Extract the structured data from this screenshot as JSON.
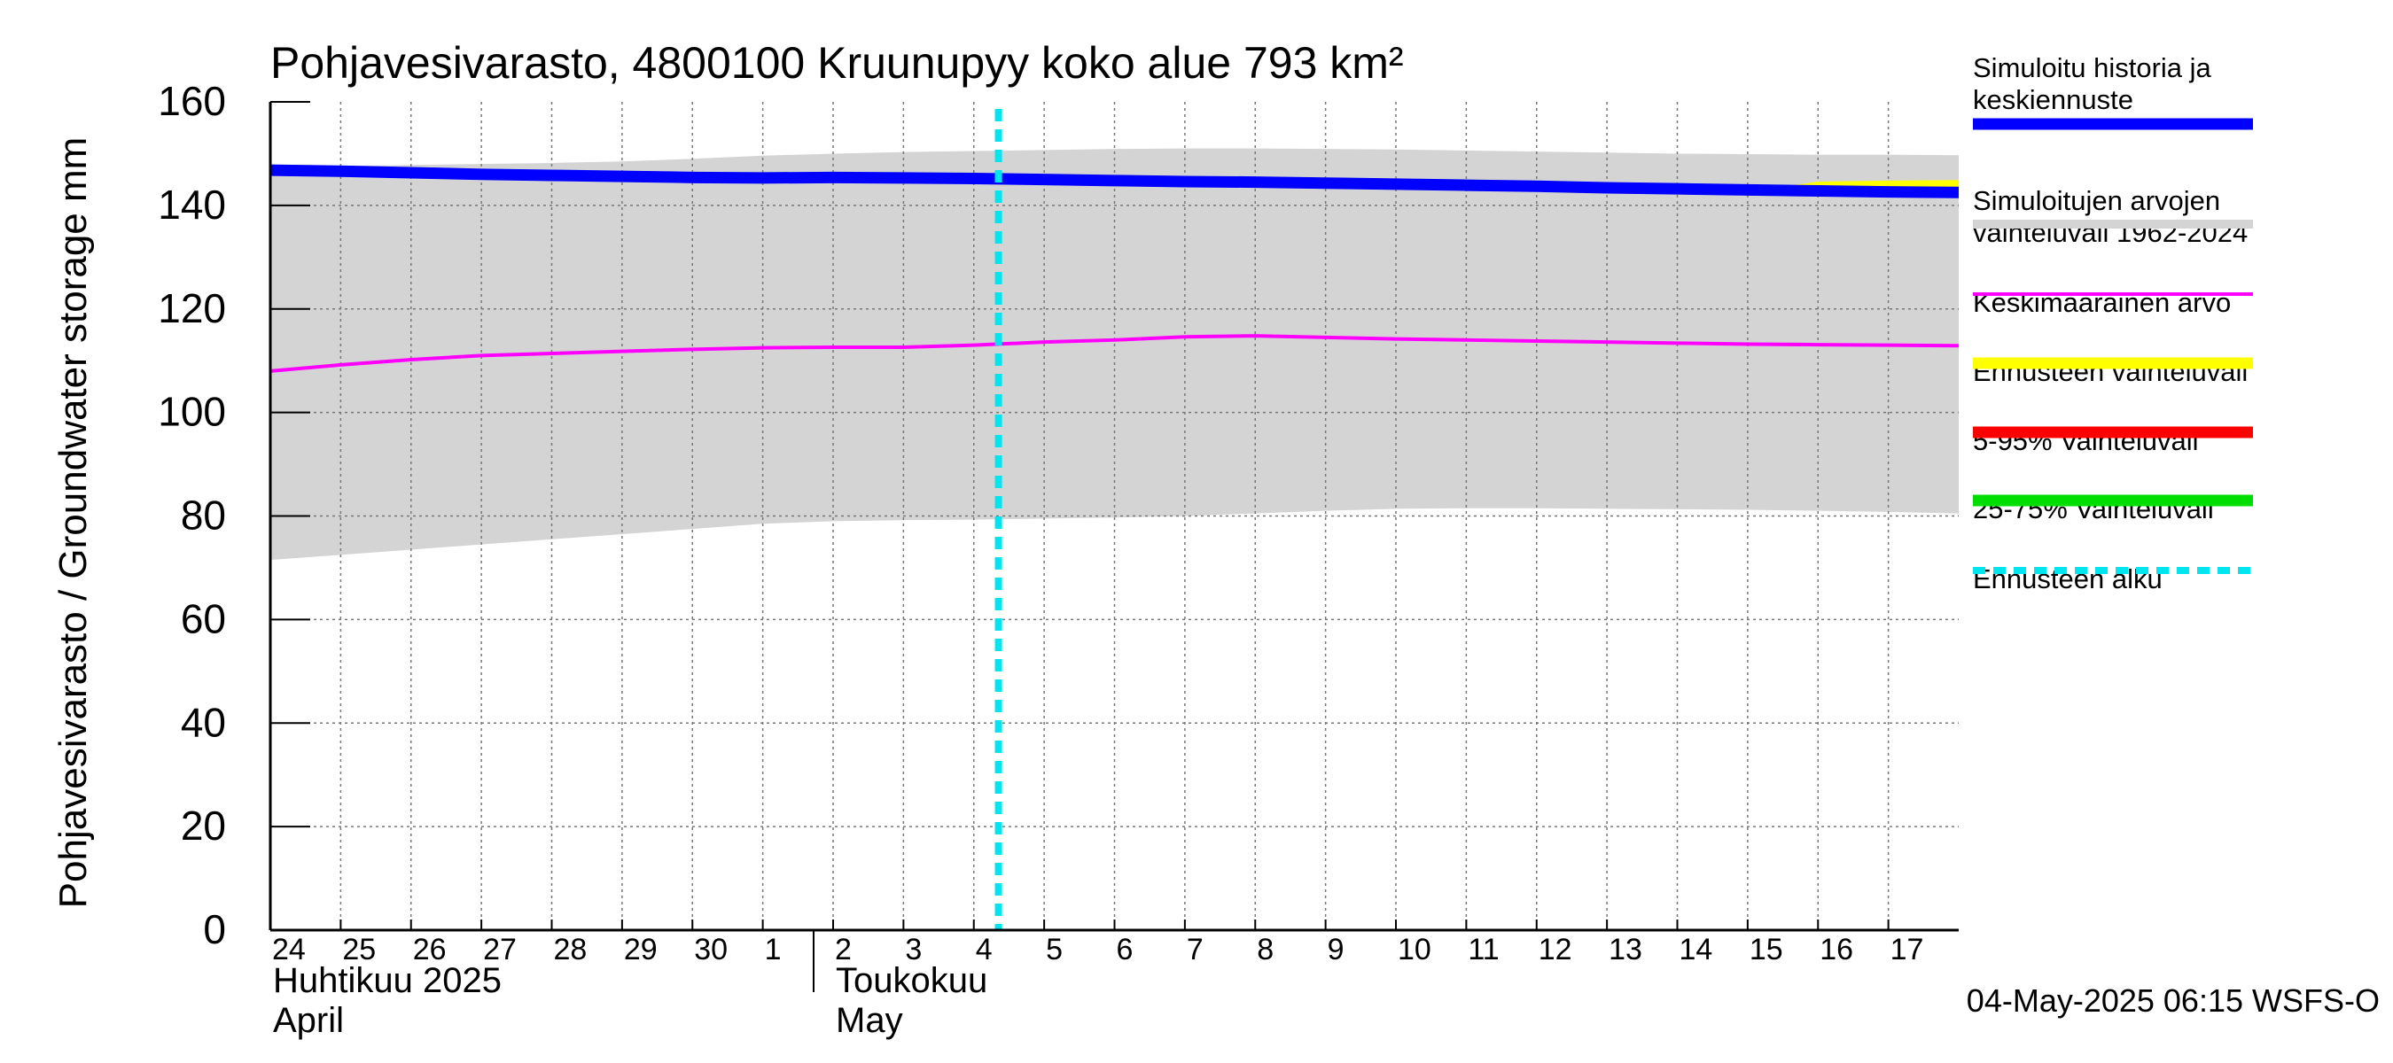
{
  "chart_data": {
    "type": "line",
    "title": "Pohjavesivarasto, 4800100 Kruunupyy koko alue 793 km²",
    "ylabel": "Pohjavesivarasto / Groundwater storage   mm",
    "ylim": [
      0,
      160
    ],
    "yticks": [
      0,
      20,
      40,
      60,
      80,
      100,
      120,
      140,
      160
    ],
    "xlim_days": [
      0,
      24
    ],
    "x_tick_labels": [
      "24",
      "25",
      "26",
      "27",
      "28",
      "29",
      "30",
      "1",
      "2",
      "3",
      "4",
      "5",
      "6",
      "7",
      "8",
      "9",
      "10",
      "11",
      "12",
      "13",
      "14",
      "15",
      "16",
      "17"
    ],
    "month_labels": [
      {
        "fi": "Huhtikuu  2025",
        "en": "April",
        "start_day": 0
      },
      {
        "fi": "Toukokuu",
        "en": "May",
        "start_day": 8
      }
    ],
    "forecast_start_day": 10.35,
    "x_days": [
      0,
      1,
      2,
      3,
      4,
      5,
      6,
      7,
      8,
      9,
      10,
      11,
      12,
      13,
      14,
      15,
      16,
      17,
      18,
      19,
      20,
      21,
      22,
      23,
      24
    ],
    "series": [
      {
        "name": "Simuloitu historia ja keskiennuste",
        "color": "#0000ff",
        "values": [
          146.8,
          146.6,
          146.3,
          146.0,
          145.8,
          145.6,
          145.4,
          145.3,
          145.4,
          145.3,
          145.2,
          145.0,
          144.8,
          144.6,
          144.5,
          144.3,
          144.1,
          143.9,
          143.7,
          143.4,
          143.2,
          143.0,
          142.8,
          142.6,
          142.5
        ]
      },
      {
        "name": "Keskimääräinen arvo",
        "color": "#ff00ff",
        "values": [
          108.0,
          109.2,
          110.2,
          111.0,
          111.4,
          111.8,
          112.2,
          112.5,
          112.6,
          112.6,
          113.0,
          113.6,
          114.0,
          114.6,
          114.8,
          114.5,
          114.2,
          114.0,
          113.8,
          113.6,
          113.4,
          113.2,
          113.1,
          113.0,
          112.9
        ]
      }
    ],
    "range_band": {
      "name": "Simuloitujen arvojen vaihteluväli 1962-2024",
      "color": "#d4d4d4",
      "upper": [
        147.5,
        147.6,
        147.8,
        148.0,
        148.2,
        148.5,
        149.0,
        149.6,
        150.0,
        150.3,
        150.5,
        150.7,
        150.9,
        151.0,
        151.0,
        150.9,
        150.8,
        150.6,
        150.4,
        150.2,
        150.0,
        149.9,
        149.8,
        149.8,
        149.7
      ],
      "lower": [
        71.5,
        72.5,
        73.5,
        74.5,
        75.5,
        76.5,
        77.5,
        78.5,
        79.0,
        79.2,
        79.3,
        79.5,
        79.7,
        80.0,
        80.5,
        81.0,
        81.4,
        81.5,
        81.5,
        81.4,
        81.3,
        81.2,
        81.0,
        80.8,
        80.5
      ]
    },
    "forecast_band": {
      "name": "Ennusteen vaihteluväli",
      "color": "#ffff00",
      "x": [
        21.3,
        22,
        23,
        24
      ],
      "upper": [
        143.2,
        144.6,
        144.8,
        144.9
      ],
      "lower": [
        143.0,
        142.6,
        142.4,
        142.3
      ]
    },
    "legend_position": "right",
    "legend": [
      {
        "label": "Simuloitu historia ja keskiennuste",
        "color": "#0000ff",
        "style": "thick"
      },
      {
        "label": "Simuloitujen arvojen vaihteluväli 1962-2024",
        "color": "#d4d4d4",
        "style": "band"
      },
      {
        "label": "Keskimääräinen arvo",
        "color": "#ff00ff",
        "style": "thin"
      },
      {
        "label": "Ennusteen vaihteluväli",
        "color": "#ffff00",
        "style": "thick"
      },
      {
        "label": "5-95% Vaihteluväli",
        "color": "#ff0000",
        "style": "thick"
      },
      {
        "label": "25-75% Vaihteluväli",
        "color": "#00dd00",
        "style": "thick"
      },
      {
        "label": "Ennusteen alku",
        "color": "#00e5ee",
        "style": "dashed"
      }
    ],
    "footer": "04-May-2025 06:15 WSFS-O"
  }
}
